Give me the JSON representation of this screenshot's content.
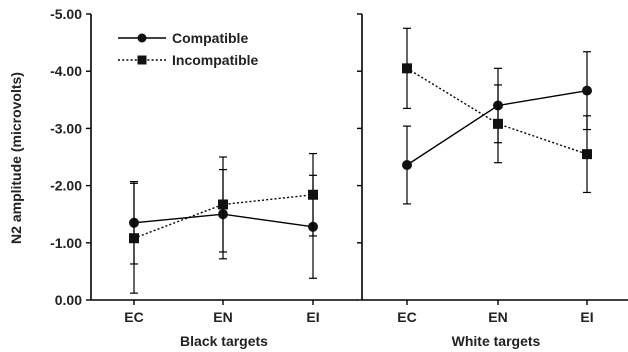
{
  "chart_data": {
    "type": "line",
    "ylabel": "N2 amplitude (microvolts)",
    "ylim": [
      0,
      -5
    ],
    "yticks": [
      0,
      -1,
      -2,
      -3,
      -4,
      -5
    ],
    "ytick_labels": [
      "0.00",
      "-1.00",
      "-2.00",
      "-3.00",
      "-4.00",
      "-5.00"
    ],
    "categories": [
      "EC",
      "EN",
      "EI"
    ],
    "legend": {
      "position": "top-left",
      "entries": [
        "Compatible",
        "Incompatible"
      ]
    },
    "grid": false,
    "panels": [
      {
        "xlabel": "Black targets",
        "series": [
          {
            "name": "Compatible",
            "marker": "circle",
            "line": "solid",
            "values": [
              -1.35,
              -1.5,
              -1.28
            ],
            "err": [
              0.72,
              0.78,
              0.9
            ]
          },
          {
            "name": "Incompatible",
            "marker": "square",
            "line": "dotted",
            "values": [
              -1.08,
              -1.67,
              -1.84
            ],
            "err": [
              0.96,
              0.83,
              0.72
            ]
          }
        ]
      },
      {
        "xlabel": "White targets",
        "series": [
          {
            "name": "Compatible",
            "marker": "circle",
            "line": "solid",
            "values": [
              -2.36,
              -3.4,
              -3.66
            ],
            "err": [
              0.68,
              0.65,
              0.68
            ]
          },
          {
            "name": "Incompatible",
            "marker": "square",
            "line": "dotted",
            "values": [
              -4.05,
              -3.08,
              -2.55
            ],
            "err": [
              0.7,
              0.68,
              0.67
            ]
          }
        ]
      }
    ]
  }
}
